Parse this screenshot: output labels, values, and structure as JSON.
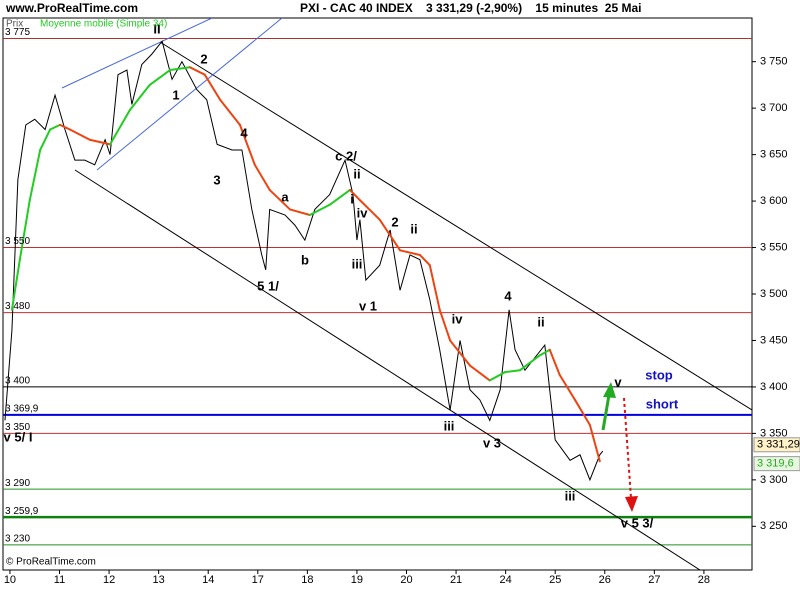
{
  "header": "www.ProRealTime.com",
  "footer": "© ProRealTime.com",
  "chart_data": {
    "type": "line",
    "title": "PXI - CAC 40 INDEX    3 331,29 (-2,90%)    15 minutes  25 Mai",
    "xlim": [
      -0.14,
      14.97
    ],
    "ylim": [
      3203,
      3797
    ],
    "xticks": [
      {
        "value": 0,
        "label": "10"
      },
      {
        "value": 1,
        "label": "11"
      },
      {
        "value": 2,
        "label": "12"
      },
      {
        "value": 3,
        "label": "13"
      },
      {
        "value": 4,
        "label": "14"
      },
      {
        "value": 5,
        "label": "17"
      },
      {
        "value": 6,
        "label": "18"
      },
      {
        "value": 7,
        "label": "19"
      },
      {
        "value": 8,
        "label": "20"
      },
      {
        "value": 9,
        "label": "21"
      },
      {
        "value": 10,
        "label": "24"
      },
      {
        "value": 11,
        "label": "25"
      },
      {
        "value": 12,
        "label": "26"
      },
      {
        "value": 13,
        "label": "27"
      },
      {
        "value": 14,
        "label": "28"
      }
    ],
    "yticks": [
      {
        "value": 3250,
        "label": "3 250"
      },
      {
        "value": 3300,
        "label": "3 300"
      },
      {
        "value": 3350,
        "label": "3 350"
      },
      {
        "value": 3400,
        "label": "3 400"
      },
      {
        "value": 3450,
        "label": "3 450"
      },
      {
        "value": 3500,
        "label": "3 500"
      },
      {
        "value": 3550,
        "label": "3 550"
      },
      {
        "value": 3600,
        "label": "3 600"
      },
      {
        "value": 3650,
        "label": "3 650"
      },
      {
        "value": 3700,
        "label": "3 700"
      },
      {
        "value": 3750,
        "label": "3 750"
      }
    ],
    "series": [
      {
        "name": "Prix",
        "color": "#000000",
        "x": [
          -0.1,
          0.04,
          0.16,
          0.32,
          0.5,
          0.71,
          0.91,
          1.11,
          1.31,
          1.51,
          1.71,
          1.92,
          2.02,
          2.18,
          2.36,
          2.46,
          2.66,
          2.86,
          3.07,
          3.27,
          3.47,
          3.77,
          3.97,
          4.18,
          4.48,
          4.68,
          4.88,
          5.08,
          5.16,
          5.24,
          5.55,
          5.75,
          5.95,
          6.15,
          6.45,
          6.76,
          6.92,
          7.0,
          7.06,
          7.18,
          7.46,
          7.67,
          7.87,
          8.07,
          8.27,
          8.47,
          8.67,
          8.88,
          9.08,
          9.28,
          9.48,
          9.68,
          9.89,
          10.07,
          10.19,
          10.39,
          10.79,
          11.0,
          11.3,
          11.5,
          11.7,
          11.9,
          11.96
        ],
        "values": [
          3364,
          3461,
          3623,
          3682,
          3688,
          3677,
          3714,
          3677,
          3644,
          3644,
          3639,
          3666,
          3650,
          3736,
          3741,
          3704,
          3747,
          3758,
          3772,
          3731,
          3750,
          3720,
          3709,
          3661,
          3655,
          3655,
          3591,
          3542,
          3526,
          3591,
          3585,
          3574,
          3558,
          3591,
          3607,
          3644,
          3607,
          3558,
          3580,
          3515,
          3531,
          3569,
          3504,
          3542,
          3537,
          3494,
          3440,
          3375,
          3450,
          3397,
          3386,
          3364,
          3397,
          3483,
          3440,
          3418,
          3445,
          3343,
          3321,
          3327,
          3300,
          3327,
          3331
        ]
      },
      {
        "name": "Moyenne mobile (Simple 34)",
        "color": "#22cc22",
        "down_color": "#ee4411",
        "x": [
          0.04,
          0.2,
          0.4,
          0.61,
          0.81,
          1.01,
          1.21,
          1.61,
          2.02,
          2.42,
          2.82,
          3.23,
          3.63,
          3.93,
          4.24,
          4.64,
          4.94,
          5.24,
          5.65,
          6.05,
          6.45,
          6.86,
          7.06,
          7.46,
          7.87,
          8.27,
          8.47,
          8.67,
          8.88,
          9.28,
          9.68,
          9.99,
          10.29,
          10.69,
          10.89,
          11.09,
          11.4,
          11.7,
          11.9
        ],
        "values": [
          3483,
          3537,
          3601,
          3655,
          3677,
          3682,
          3677,
          3666,
          3661,
          3698,
          3725,
          3741,
          3744,
          3736,
          3709,
          3682,
          3639,
          3612,
          3591,
          3585,
          3596,
          3612,
          3601,
          3580,
          3547,
          3542,
          3531,
          3483,
          3450,
          3423,
          3407,
          3416,
          3418,
          3434,
          3440,
          3413,
          3386,
          3359,
          3320
        ]
      }
    ],
    "levels": [
      {
        "value": 3775,
        "label": "3 775",
        "color": "#b03030",
        "width": 1
      },
      {
        "value": 3550,
        "label": "3 550",
        "color": "#c03030",
        "width": 1
      },
      {
        "value": 3480,
        "label": "3 480",
        "color": "#c03030",
        "width": 1
      },
      {
        "value": 3400,
        "label": "3 400",
        "color": "#000000",
        "width": 1
      },
      {
        "value": 3369.9,
        "label": "3 369,9",
        "color": "#0000e0",
        "width": 2
      },
      {
        "value": 3350,
        "label": "3 350",
        "color": "#c03030",
        "width": 1
      },
      {
        "value": 3290,
        "label": "3 290",
        "color": "#209020",
        "width": 1
      },
      {
        "value": 3259.9,
        "label": "3 259,9",
        "color": "#108010",
        "width": 2.5
      },
      {
        "value": 3230,
        "label": "3 230",
        "color": "#209020",
        "width": 1
      }
    ],
    "last_values": [
      {
        "value": 3331.29,
        "label": "3 331,29",
        "color": "#fff2c8",
        "text_color": "#000000"
      },
      {
        "value": 3319.6,
        "label": "3 319,6",
        "color": "#e8f8e0",
        "text_color": "#22aa22"
      }
    ],
    "annotations": [
      "II",
      "2",
      "1",
      "4",
      "3",
      "a",
      "b",
      "5 1/",
      "c 2/",
      "ii",
      "i",
      "iv",
      "iii",
      "v 1",
      "2",
      "ii",
      "iv",
      "4",
      "ii",
      "iii",
      "v 3",
      "iii",
      "v",
      "v 5 3/",
      "v 5/ I",
      "stop",
      "short"
    ]
  }
}
